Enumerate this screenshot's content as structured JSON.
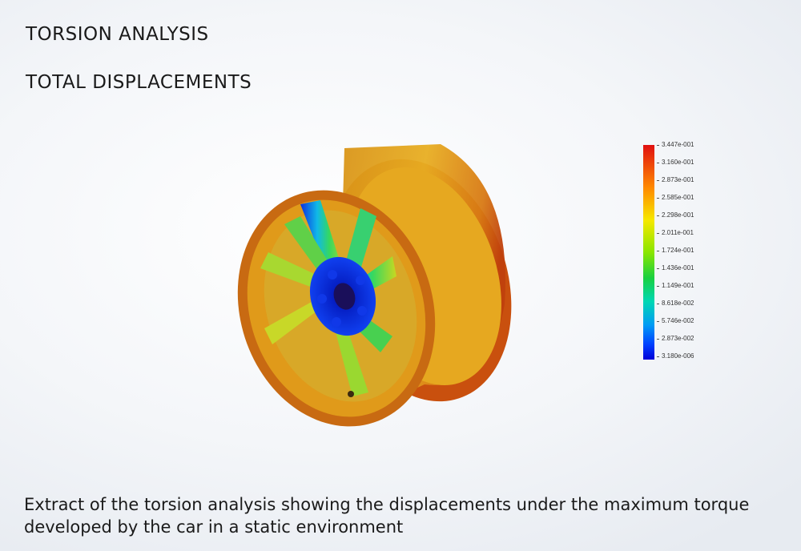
{
  "header": {
    "title": "TORSION ANALYSIS",
    "subtitle": "TOTAL DISPLACEMENTS"
  },
  "legend": {
    "ticks": [
      "3.447e-001",
      "3.160e-001",
      "2.873e-001",
      "2.585e-001",
      "2.298e-001",
      "2.011e-001",
      "1.724e-001",
      "1.436e-001",
      "1.149e-001",
      "8.618e-002",
      "5.746e-002",
      "2.873e-002",
      "3.180e-006"
    ]
  },
  "caption": "Extract of the torsion analysis showing the displacements under the maximum torque developed by the car in a static environment",
  "colors": {
    "rim_outer": "#c75a10",
    "rim_body": "#e0a018",
    "hub": "#0a20d0",
    "spoke_mid": "#1ecfc0",
    "spoke_base": "#7fd820"
  }
}
